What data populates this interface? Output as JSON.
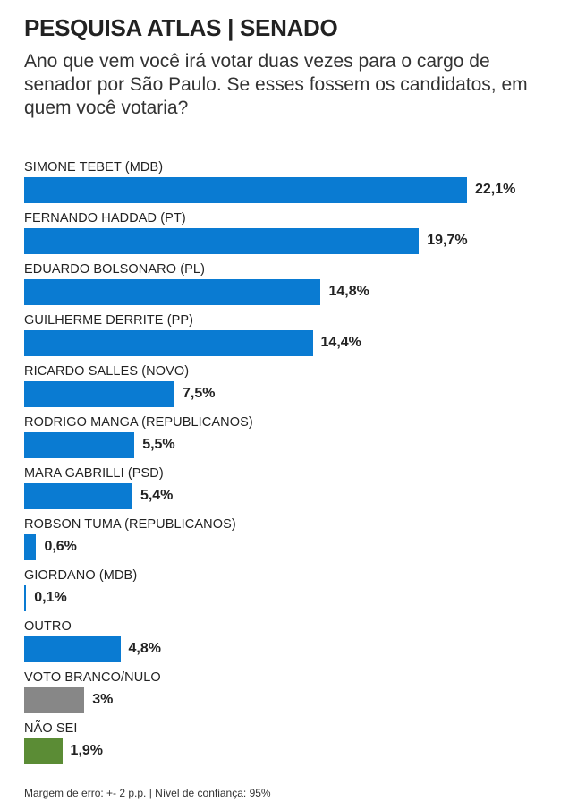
{
  "title": "PESQUISA ATLAS | SENADO",
  "subtitle": "Ano que vem você irá votar duas vezes para o cargo de senador por São Paulo. Se esses fossem os candidatos, em quem você votaria?",
  "footnote": "Margem de erro: +- 2 p.p. | Nível de confiança: 95%",
  "colors": {
    "candidate": "#0a7bd2",
    "blank": "#878787",
    "unknown": "#5b8c35"
  },
  "chart_data": {
    "type": "bar",
    "orientation": "horizontal",
    "grid": false,
    "categories": [
      "SIMONE TEBET (MDB)",
      "FERNANDO HADDAD (PT)",
      "EDUARDO BOLSONARO (PL)",
      "GUILHERME DERRITE (PP)",
      "RICARDO SALLES (NOVO)",
      "RODRIGO MANGA (REPUBLICANOS)",
      "MARA GABRILLI (PSD)",
      "ROBSON TUMA (REPUBLICANOS)",
      "GIORDANO (MDB)",
      "OUTRO",
      "VOTO BRANCO/NULO",
      "NÃO SEI"
    ],
    "values": [
      22.1,
      19.7,
      14.8,
      14.4,
      7.5,
      5.5,
      5.4,
      0.6,
      0.1,
      4.8,
      3,
      1.9
    ],
    "value_labels": [
      "22,1%",
      "19,7%",
      "14,8%",
      "14,4%",
      "7,5%",
      "5,5%",
      "5,4%",
      "0,6%",
      "0,1%",
      "4,8%",
      "3%",
      "1,9%"
    ],
    "bar_colors": [
      "#0a7bd2",
      "#0a7bd2",
      "#0a7bd2",
      "#0a7bd2",
      "#0a7bd2",
      "#0a7bd2",
      "#0a7bd2",
      "#0a7bd2",
      "#0a7bd2",
      "#0a7bd2",
      "#878787",
      "#5b8c35"
    ],
    "xlim": [
      0,
      22.1
    ]
  }
}
